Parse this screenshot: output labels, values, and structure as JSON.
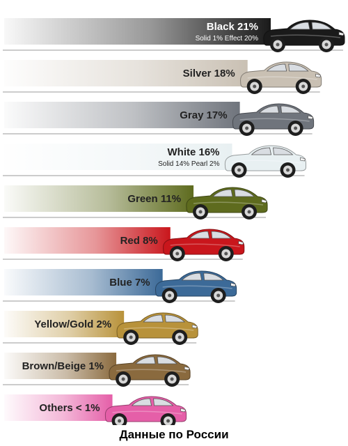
{
  "caption": "Данные по России",
  "chart_data": {
    "type": "bar",
    "orientation": "horizontal",
    "xlim": [
      0,
      21
    ],
    "categories": [
      "Black",
      "Silver",
      "Gray",
      "White",
      "Green",
      "Red",
      "Blue",
      "Yellow/Gold",
      "Brown/Beige",
      "Others"
    ],
    "labels": [
      "Black 21%",
      "Silver 18%",
      "Gray 17%",
      "White 16%",
      "Green 11%",
      "Red 8%",
      "Blue 7%",
      "Yellow/Gold 2%",
      "Brown/Beige 1%",
      "Others < 1%"
    ],
    "values": [
      21,
      18,
      17,
      16,
      11,
      8,
      7,
      2,
      1,
      0.5
    ],
    "sublabels": [
      "Solid 1%   Effect 20%",
      "",
      "",
      "Solid 14%   Pearl 2%",
      "",
      "",
      "",
      "",
      "",
      ""
    ],
    "colors": [
      "#1a1a1a",
      "#c9c0b3",
      "#6f747c",
      "#e8f0f2",
      "#5e6b1e",
      "#c9161c",
      "#3c6a98",
      "#b8923a",
      "#8a6a3e",
      "#e55fa8"
    ]
  }
}
